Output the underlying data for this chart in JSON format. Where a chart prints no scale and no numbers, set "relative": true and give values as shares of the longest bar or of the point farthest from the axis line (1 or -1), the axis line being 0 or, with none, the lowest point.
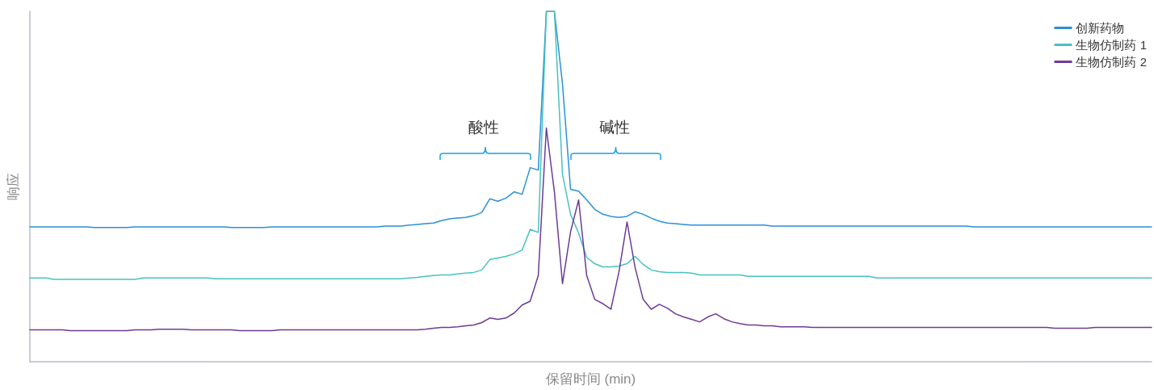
{
  "chart_data": {
    "type": "line",
    "relative": true,
    "xlabel": "保留时间 (min)",
    "ylabel": "响应",
    "legend": "top right",
    "marker": "none",
    "line_style": "solid",
    "grid": false,
    "annotations": [
      "酸性",
      "碱性"
    ],
    "categories": [
      null,
      null,
      null,
      null,
      null,
      null,
      null,
      null,
      null,
      null,
      null,
      null,
      null,
      null,
      null,
      null,
      null,
      null,
      null,
      null,
      null,
      null,
      null,
      null,
      null,
      null,
      null,
      null,
      null,
      null,
      null,
      null,
      null,
      null,
      null,
      null,
      null,
      null,
      null,
      null,
      null,
      null,
      null,
      null,
      null,
      null,
      null,
      null,
      null,
      null,
      null,
      null,
      null,
      null,
      null,
      null,
      null,
      null,
      null,
      null,
      null,
      null,
      null,
      null,
      null,
      null,
      null,
      null,
      null,
      null,
      null,
      null,
      null,
      null,
      null,
      null,
      null,
      null,
      null,
      null,
      null,
      null,
      null,
      null,
      null,
      null,
      null,
      null,
      null,
      null,
      null,
      null,
      null,
      null,
      null,
      null,
      null,
      null,
      null,
      null,
      null,
      null,
      null,
      null,
      null,
      null,
      null,
      null,
      null,
      null,
      null,
      null,
      null,
      null,
      null,
      null,
      null,
      null,
      null,
      null,
      null,
      null,
      null,
      null,
      null,
      null,
      null,
      null,
      null,
      null,
      null,
      null,
      null,
      null,
      null,
      null,
      null,
      null,
      null,
      null
    ],
    "series": [
      {
        "name": "创新药物",
        "color": "#2a90d8",
        "values": [
          0.385,
          0.385,
          0.385,
          0.385,
          0.385,
          0.385,
          0.385,
          0.385,
          0.383,
          0.383,
          0.383,
          0.383,
          0.383,
          0.385,
          0.385,
          0.385,
          0.385,
          0.385,
          0.385,
          0.385,
          0.385,
          0.385,
          0.385,
          0.385,
          0.385,
          0.383,
          0.383,
          0.383,
          0.383,
          0.383,
          0.385,
          0.385,
          0.385,
          0.385,
          0.385,
          0.385,
          0.385,
          0.385,
          0.385,
          0.385,
          0.385,
          0.385,
          0.385,
          0.385,
          0.387,
          0.387,
          0.387,
          0.39,
          0.392,
          0.394,
          0.396,
          0.403,
          0.408,
          0.41,
          0.412,
          0.417,
          0.426,
          0.465,
          0.458,
          0.467,
          0.485,
          0.478,
          0.554,
          0.547,
          1,
          1,
          0.793,
          0.492,
          0.487,
          0.462,
          0.435,
          0.421,
          0.415,
          0.412,
          0.415,
          0.428,
          0.421,
          0.41,
          0.401,
          0.396,
          0.394,
          0.392,
          0.39,
          0.39,
          0.39,
          0.39,
          0.39,
          0.39,
          0.39,
          0.39,
          0.39,
          0.39,
          0.387,
          0.387,
          0.387,
          0.387,
          0.387,
          0.387,
          0.387,
          0.387,
          0.387,
          0.387,
          0.387,
          0.387,
          0.387,
          0.387,
          0.387,
          0.387,
          0.387,
          0.387,
          0.387,
          0.387,
          0.387,
          0.387,
          0.387,
          0.387,
          0.387,
          0.385,
          0.385,
          0.385,
          0.385,
          0.385,
          0.385,
          0.385,
          0.385,
          0.385,
          0.385,
          0.385,
          0.385,
          0.385,
          0.385,
          0.385,
          0.385,
          0.385,
          0.385,
          0.385,
          0.385,
          0.385,
          0.385,
          0.385
        ]
      },
      {
        "name": "生物仿制药 1",
        "color": "#46c2c0",
        "values": [
          0.239,
          0.239,
          0.239,
          0.235,
          0.235,
          0.235,
          0.235,
          0.235,
          0.235,
          0.235,
          0.235,
          0.235,
          0.235,
          0.235,
          0.239,
          0.239,
          0.239,
          0.239,
          0.239,
          0.239,
          0.239,
          0.239,
          0.239,
          0.237,
          0.237,
          0.237,
          0.237,
          0.237,
          0.237,
          0.237,
          0.237,
          0.237,
          0.237,
          0.237,
          0.237,
          0.237,
          0.237,
          0.237,
          0.237,
          0.237,
          0.237,
          0.237,
          0.237,
          0.237,
          0.237,
          0.237,
          0.237,
          0.239,
          0.241,
          0.244,
          0.246,
          0.248,
          0.248,
          0.251,
          0.253,
          0.255,
          0.262,
          0.292,
          0.296,
          0.301,
          0.308,
          0.319,
          0.378,
          0.369,
          1,
          1,
          0.535,
          0.421,
          0.367,
          0.298,
          0.28,
          0.271,
          0.271,
          0.273,
          0.28,
          0.301,
          0.278,
          0.262,
          0.257,
          0.255,
          0.255,
          0.255,
          0.253,
          0.248,
          0.248,
          0.248,
          0.248,
          0.248,
          0.248,
          0.244,
          0.244,
          0.244,
          0.244,
          0.244,
          0.244,
          0.244,
          0.244,
          0.244,
          0.244,
          0.244,
          0.244,
          0.244,
          0.244,
          0.244,
          0.244,
          0.239,
          0.239,
          0.239,
          0.239,
          0.239,
          0.239,
          0.239,
          0.239,
          0.239,
          0.239,
          0.239,
          0.239,
          0.239,
          0.239,
          0.239,
          0.239,
          0.239,
          0.239,
          0.239,
          0.239,
          0.239,
          0.239,
          0.239,
          0.239,
          0.239,
          0.239,
          0.239,
          0.239,
          0.239,
          0.239,
          0.239,
          0.239,
          0.239,
          0.239,
          0.239
        ]
      },
      {
        "name": "生物仿制药 2",
        "color": "#6e3a96",
        "values": [
          0.091,
          0.091,
          0.091,
          0.091,
          0.091,
          0.089,
          0.089,
          0.089,
          0.089,
          0.089,
          0.089,
          0.089,
          0.089,
          0.091,
          0.091,
          0.091,
          0.093,
          0.093,
          0.093,
          0.093,
          0.091,
          0.091,
          0.091,
          0.091,
          0.091,
          0.091,
          0.089,
          0.089,
          0.089,
          0.089,
          0.089,
          0.091,
          0.091,
          0.091,
          0.091,
          0.091,
          0.091,
          0.091,
          0.091,
          0.091,
          0.091,
          0.091,
          0.091,
          0.091,
          0.091,
          0.091,
          0.091,
          0.091,
          0.091,
          0.093,
          0.096,
          0.098,
          0.098,
          0.1,
          0.103,
          0.105,
          0.112,
          0.125,
          0.121,
          0.125,
          0.139,
          0.162,
          0.173,
          0.246,
          0.667,
          0.485,
          0.223,
          0.371,
          0.462,
          0.246,
          0.178,
          0.166,
          0.15,
          0.257,
          0.399,
          0.269,
          0.178,
          0.15,
          0.164,
          0.153,
          0.137,
          0.128,
          0.121,
          0.114,
          0.128,
          0.137,
          0.123,
          0.114,
          0.109,
          0.105,
          0.105,
          0.103,
          0.103,
          0.1,
          0.1,
          0.1,
          0.1,
          0.098,
          0.098,
          0.098,
          0.098,
          0.098,
          0.098,
          0.098,
          0.098,
          0.098,
          0.098,
          0.098,
          0.098,
          0.098,
          0.098,
          0.098,
          0.098,
          0.098,
          0.098,
          0.098,
          0.098,
          0.098,
          0.098,
          0.098,
          0.098,
          0.098,
          0.098,
          0.098,
          0.098,
          0.098,
          0.098,
          0.096,
          0.096,
          0.096,
          0.096,
          0.096,
          0.098,
          0.098,
          0.098,
          0.098,
          0.098,
          0.098,
          0.098,
          0.098
        ]
      }
    ]
  }
}
